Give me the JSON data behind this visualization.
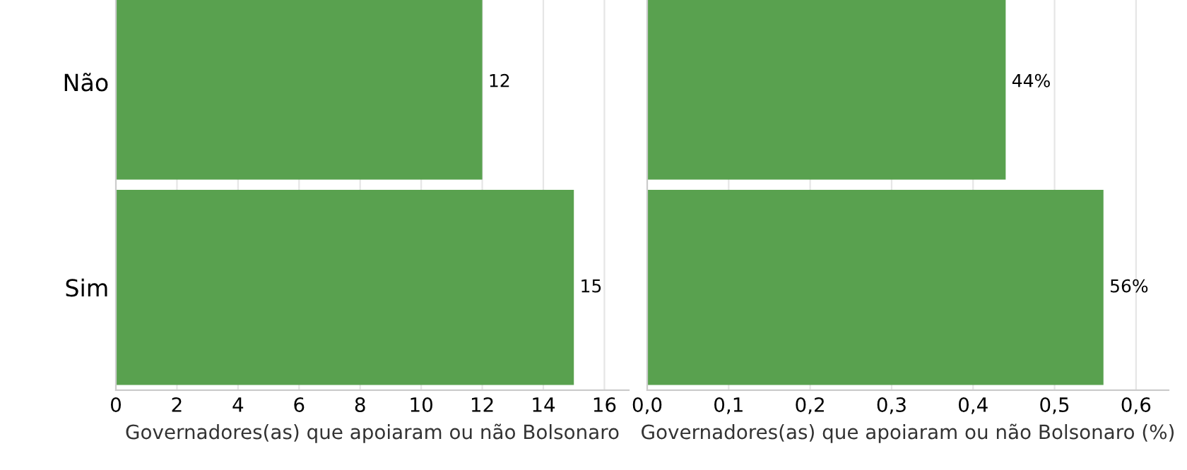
{
  "chart_data": [
    {
      "type": "bar",
      "orientation": "horizontal",
      "categories": [
        "Não",
        "Sim"
      ],
      "values": [
        12,
        15
      ],
      "color": "#59a14f",
      "xlim": [
        0,
        16.8
      ],
      "xticks": [
        0,
        2,
        4,
        6,
        8,
        10,
        12,
        14,
        16
      ],
      "xlabel": "Governadores(as) que apoiaram ou não Bolsonaro",
      "data_labels": true,
      "grid": "x"
    },
    {
      "type": "bar",
      "orientation": "horizontal",
      "categories": [
        null,
        null
      ],
      "values": [
        0.44,
        0.56
      ],
      "value_labels": [
        "44%",
        "56%"
      ],
      "color": "#59a14f",
      "xlim": [
        0,
        0.64
      ],
      "xticks": [
        {
          "value": 0,
          "label": "0,0"
        },
        {
          "value": 0.1,
          "label": "0,1"
        },
        {
          "value": 0.2,
          "label": "0,2"
        },
        {
          "value": 0.3,
          "label": "0,3"
        },
        {
          "value": 0.4,
          "label": "0,4"
        },
        {
          "value": 0.5,
          "label": "0,5"
        },
        {
          "value": 0.6,
          "label": "0,6"
        }
      ],
      "xlabel": "Governadores(as) que apoiaram ou não Bolsonaro (%)",
      "grid": "x",
      "tick_labels": "x"
    }
  ]
}
